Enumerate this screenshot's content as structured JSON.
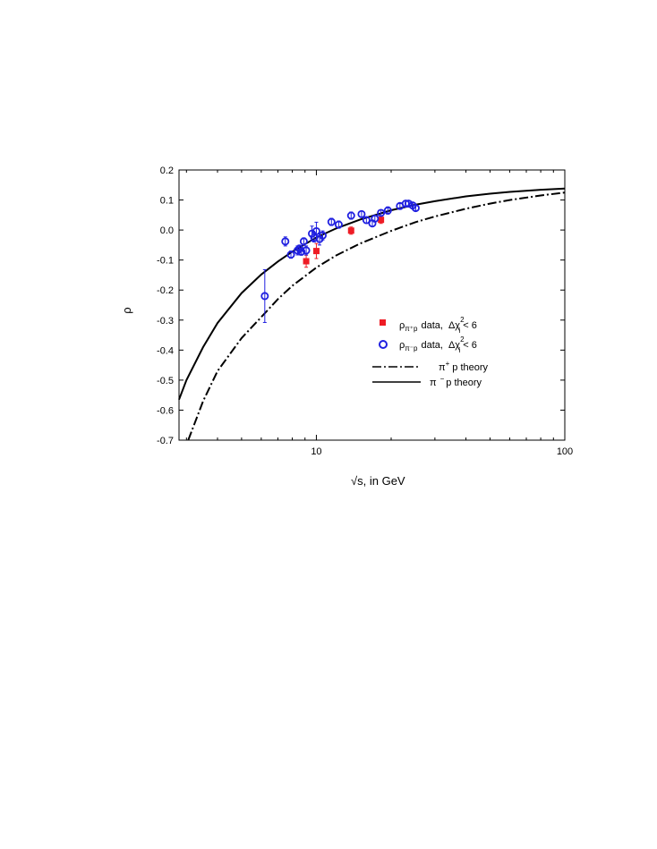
{
  "chart_data": {
    "type": "scatter",
    "title": "",
    "xlabel": "√s, in GeV",
    "ylabel": "ρ",
    "xscale": "log",
    "xlim": [
      2.8,
      100
    ],
    "ylim": [
      -0.7,
      0.2
    ],
    "xticks": [
      10,
      100
    ],
    "xtick_labels": [
      "10",
      "100"
    ],
    "yticks": [
      0.2,
      0.1,
      0.0,
      -0.1,
      -0.2,
      -0.3,
      -0.4,
      -0.5,
      -0.6,
      -0.7
    ],
    "ytick_labels": [
      "0.2",
      "0.1",
      "0.0",
      "-0.1",
      "-0.2",
      "-0.3",
      "-0.4",
      "-0.5",
      "-0.6",
      "-0.7"
    ],
    "grid": false,
    "legend_position": "center-right",
    "legend": {
      "pip_data": {
        "rho": "ρ",
        "sub": "π⁺p",
        "text": "data,",
        "chi": "Δχ",
        "sup": "2",
        "isub": "i",
        "cond": "< 6"
      },
      "pim_data": {
        "rho": "ρ",
        "sub": "π⁻p",
        "text": "data,",
        "chi": "Δχ",
        "sup": "2",
        "isub": "i",
        "cond": "< 6"
      },
      "pip_theory": {
        "pi": "π",
        "sup": "+",
        "text": "p theory"
      },
      "pim_theory": {
        "pi": "π",
        "sup": "−",
        "text": "p theory"
      }
    },
    "series": [
      {
        "kind": "points",
        "marker": "square",
        "color": "#ee1c25",
        "x": [
          9.1,
          10.0,
          13.8,
          18.2
        ],
        "y": [
          -0.104,
          -0.07,
          -0.002,
          0.034
        ],
        "err": [
          0.02,
          0.025,
          0.012,
          0.012
        ]
      },
      {
        "kind": "points",
        "marker": "open-circle",
        "color": "#1f1fe0",
        "x": [
          6.2,
          7.5,
          7.9,
          8.4,
          8.55,
          8.7,
          8.9,
          9.1,
          9.6,
          9.8,
          10.0,
          10.3,
          10.6,
          11.5,
          12.3,
          13.8,
          15.2,
          15.9,
          16.8,
          17.2,
          18.2,
          19.4,
          21.7,
          22.9,
          23.5,
          24.4,
          25.1
        ],
        "y": [
          -0.22,
          -0.038,
          -0.082,
          -0.068,
          -0.062,
          -0.072,
          -0.038,
          -0.068,
          -0.012,
          -0.025,
          -0.004,
          -0.03,
          -0.018,
          0.027,
          0.018,
          0.048,
          0.053,
          0.033,
          0.022,
          0.038,
          0.057,
          0.065,
          0.08,
          0.088,
          0.088,
          0.082,
          0.073
        ],
        "err": [
          0.088,
          0.015,
          0.012,
          0.015,
          0.012,
          0.012,
          0.012,
          0.015,
          0.025,
          0.015,
          0.03,
          0.02,
          0.015,
          0.012,
          0.012,
          0.012,
          0.01,
          0.01,
          0.01,
          0.01,
          0.01,
          0.012,
          0.008,
          0.008,
          0.008,
          0.008,
          0.008
        ]
      },
      {
        "kind": "line",
        "style": "dash-dot",
        "color": "#000000",
        "x": [
          3.05,
          3.5,
          4,
          5,
          6,
          7,
          8,
          10,
          12,
          15,
          20,
          25,
          30,
          40,
          50,
          60,
          80,
          100
        ],
        "y": [
          -0.7,
          -0.57,
          -0.47,
          -0.36,
          -0.29,
          -0.23,
          -0.186,
          -0.125,
          -0.085,
          -0.045,
          -0.003,
          0.026,
          0.045,
          0.071,
          0.088,
          0.1,
          0.115,
          0.125
        ]
      },
      {
        "kind": "line",
        "style": "solid",
        "color": "#000000",
        "x": [
          2.8,
          3,
          3.5,
          4,
          5,
          6,
          7,
          8,
          10,
          12,
          15,
          20,
          25,
          30,
          40,
          50,
          60,
          80,
          100
        ],
        "y": [
          -0.565,
          -0.5,
          -0.39,
          -0.31,
          -0.21,
          -0.148,
          -0.105,
          -0.072,
          -0.025,
          0.005,
          0.035,
          0.066,
          0.084,
          0.096,
          0.112,
          0.121,
          0.127,
          0.134,
          0.138
        ]
      }
    ]
  }
}
